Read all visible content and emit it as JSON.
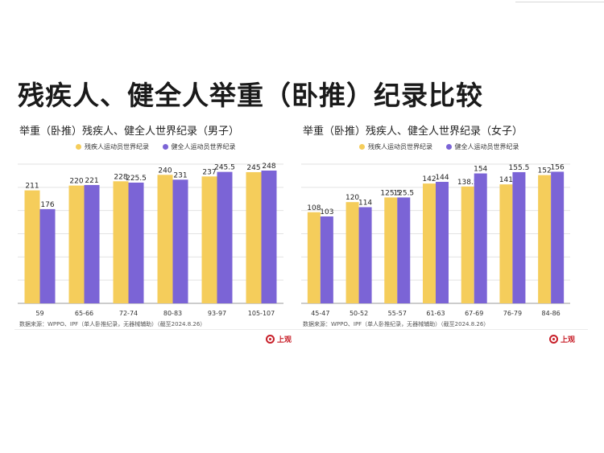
{
  "page": {
    "main_title": "残疾人、健全人举重（卧推）纪录比较"
  },
  "colors": {
    "disabled": "#F5CD5B",
    "able": "#7B64D6",
    "grid": "#E2E2E2",
    "axis": "#9A9A9A"
  },
  "legend": {
    "disabled_label": "残疾人运动员世界纪录",
    "able_label": "健全人运动员世界纪录"
  },
  "source_note": "数据来源：WPPO、IPF（单人卧推纪录，无器械辅助）（截至2024.8.26）",
  "logo_text": "上观",
  "chart_data": [
    {
      "type": "bar",
      "title": "举重（卧推）残疾人、健全人世界纪录（男子）",
      "categories": [
        "59",
        "65-66",
        "72-74",
        "80-83",
        "93-97",
        "105-107"
      ],
      "series": [
        {
          "name": "残疾人运动员世界纪录",
          "values": [
            211,
            220,
            228,
            240,
            237,
            245
          ]
        },
        {
          "name": "健全人运动员世界纪录",
          "values": [
            176,
            221,
            225.5,
            231,
            245.5,
            248
          ]
        }
      ],
      "ylim": [
        0,
        260
      ],
      "grid": true,
      "legend_position": "top"
    },
    {
      "type": "bar",
      "title": "举重（卧推）残疾人、健全人世界纪录（女子）",
      "categories": [
        "45-47",
        "50-52",
        "55-57",
        "61-63",
        "67-69",
        "76-79",
        "84-86"
      ],
      "series": [
        {
          "name": "残疾人运动员世界纪录",
          "values": [
            108,
            120,
            125.5,
            142,
            138.5,
            141,
            152
          ]
        },
        {
          "name": "健全人运动员世界纪录",
          "values": [
            103,
            114,
            125.5,
            144,
            154,
            155.5,
            156
          ]
        }
      ],
      "ylim": [
        0,
        165
      ],
      "grid": true,
      "legend_position": "top"
    }
  ]
}
